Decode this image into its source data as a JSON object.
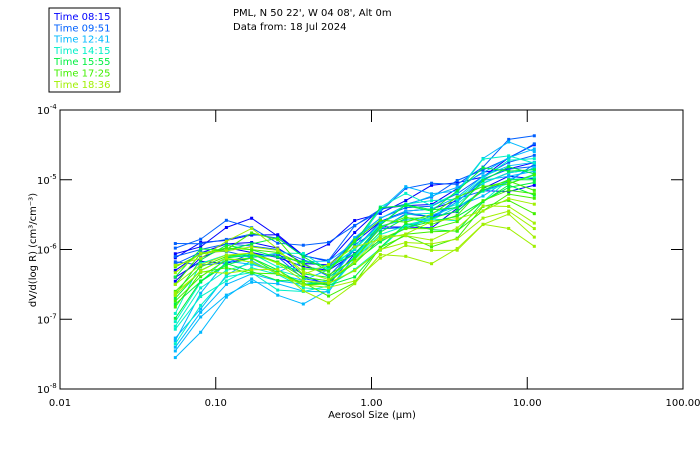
{
  "chart_data": {
    "type": "line",
    "title": "PML, N 50 22', W 04 08', Alt 0m",
    "subtitle": "Data from: 18 Jul 2024",
    "xlabel": "Aerosol Size (µm)",
    "ylabel": "dV/d(log R) (cm³/cm⁻³)",
    "xscale": "log",
    "yscale": "log",
    "xlim": [
      0.01,
      100
    ],
    "ylim": [
      1e-08,
      0.0001
    ],
    "xticks": [
      {
        "v": 0.01,
        "label": "0.01"
      },
      {
        "v": 0.1,
        "label": "0.10"
      },
      {
        "v": 1,
        "label": "1.00"
      },
      {
        "v": 10,
        "label": "10.00"
      },
      {
        "v": 100,
        "label": "100.00"
      }
    ],
    "yticks": [
      {
        "exp": -4,
        "label": "10",
        "sup": "-4"
      },
      {
        "exp": -5,
        "label": "10",
        "sup": "-5"
      },
      {
        "exp": -6,
        "label": "10",
        "sup": "-6"
      },
      {
        "exp": -7,
        "label": "10",
        "sup": "-7"
      },
      {
        "exp": -8,
        "label": "10",
        "sup": "-8"
      }
    ],
    "legend_position": "top-left",
    "x": [
      0.055,
      0.08,
      0.117,
      0.17,
      0.25,
      0.365,
      0.53,
      0.78,
      1.14,
      1.66,
      2.43,
      3.55,
      5.2,
      7.6,
      11.1
    ],
    "series": [
      {
        "name": "Time 08:15",
        "color": "#0000ff",
        "log10_values": [
          -6.3,
          -6.05,
          -5.92,
          -5.9,
          -5.98,
          -6.2,
          -6.22,
          -5.9,
          -5.6,
          -5.45,
          -5.42,
          -5.3,
          -5.05,
          -4.9,
          -4.85
        ]
      },
      {
        "name": "Time 09:51",
        "color": "#0060ff",
        "log10_values": [
          -6.1,
          -6.0,
          -5.92,
          -5.95,
          -6.0,
          -6.15,
          -6.25,
          -5.85,
          -5.55,
          -5.4,
          -5.38,
          -5.2,
          -4.95,
          -4.75,
          -4.65
        ]
      },
      {
        "name": "Time 12:41",
        "color": "#00b8ff",
        "log10_values": [
          -7.4,
          -6.9,
          -6.5,
          -6.35,
          -6.45,
          -6.5,
          -6.45,
          -6.0,
          -5.62,
          -5.45,
          -5.42,
          -5.25,
          -4.95,
          -4.8,
          -4.75
        ]
      },
      {
        "name": "Time 14:15",
        "color": "#00f0c8",
        "log10_values": [
          -7.1,
          -6.55,
          -6.3,
          -6.2,
          -6.3,
          -6.4,
          -6.45,
          -6.1,
          -5.7,
          -5.5,
          -5.48,
          -5.35,
          -5.05,
          -4.9,
          -4.85
        ]
      },
      {
        "name": "Time 15:55",
        "color": "#00f040",
        "log10_values": [
          -6.7,
          -6.3,
          -6.12,
          -6.08,
          -6.18,
          -6.35,
          -6.4,
          -6.12,
          -5.75,
          -5.55,
          -5.55,
          -5.45,
          -5.15,
          -5.0,
          -5.0
        ]
      },
      {
        "name": "Time 17:25",
        "color": "#40f000",
        "log10_values": [
          -6.6,
          -6.25,
          -6.1,
          -6.05,
          -6.18,
          -6.4,
          -6.45,
          -6.2,
          -5.85,
          -5.7,
          -5.7,
          -5.6,
          -5.3,
          -5.15,
          -5.2
        ]
      },
      {
        "name": "Time 18:36",
        "color": "#a0f000",
        "log10_values": [
          -6.5,
          -6.22,
          -6.08,
          -6.05,
          -6.2,
          -6.45,
          -6.48,
          -6.3,
          -6.0,
          -5.9,
          -5.92,
          -5.85,
          -5.55,
          -5.45,
          -5.7
        ]
      }
    ]
  }
}
